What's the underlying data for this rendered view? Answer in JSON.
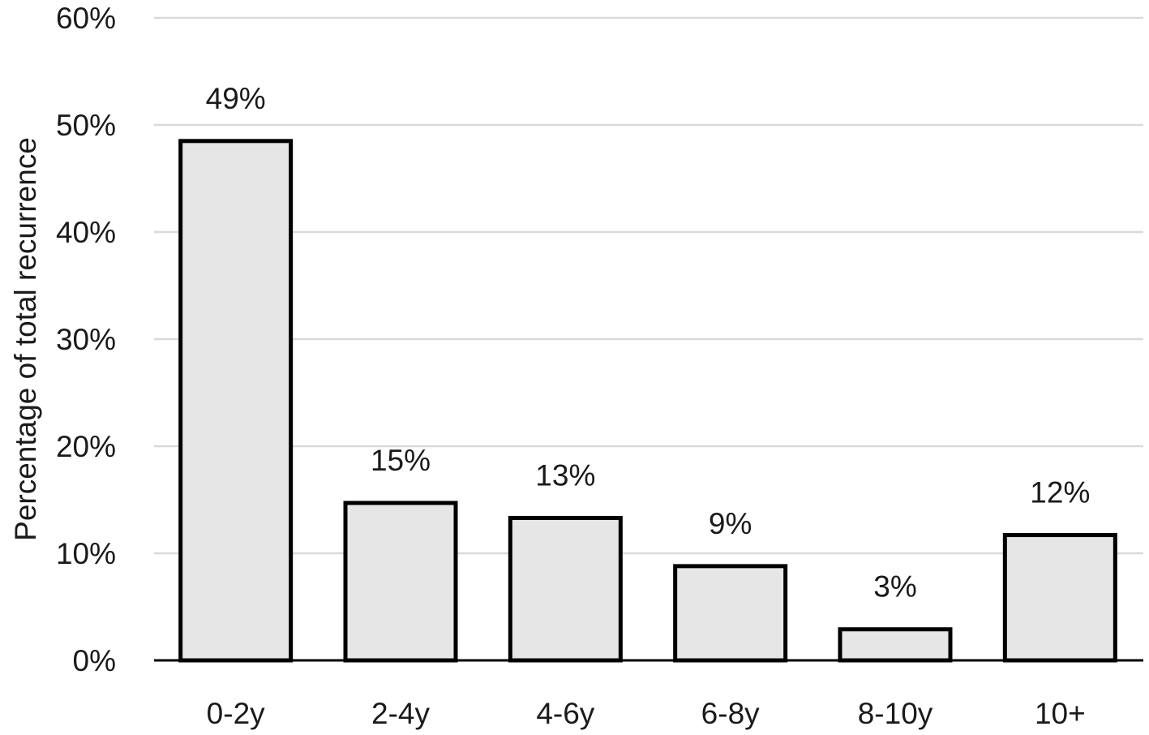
{
  "chart_data": {
    "type": "bar",
    "title": "",
    "xlabel": "",
    "ylabel": "Percentage of total recurrence",
    "categories": [
      "0-2y",
      "2-4y",
      "4-6y",
      "6-8y",
      "8-10y",
      "10+"
    ],
    "values": [
      48.5,
      14.7,
      13.3,
      8.8,
      2.9,
      11.7
    ],
    "data_labels": [
      "49%",
      "15%",
      "13%",
      "9%",
      "3%",
      "12%"
    ],
    "ylim": [
      0,
      60
    ],
    "yticks": [
      0,
      10,
      20,
      30,
      40,
      50,
      60
    ],
    "ytick_labels": [
      "0%",
      "10%",
      "20%",
      "30%",
      "40%",
      "50%",
      "60%"
    ],
    "grid": true,
    "legend": "none",
    "colors": {
      "bar_fill": "#e6e6e6",
      "bar_stroke": "#000000",
      "grid": "#d9d9d9"
    }
  }
}
